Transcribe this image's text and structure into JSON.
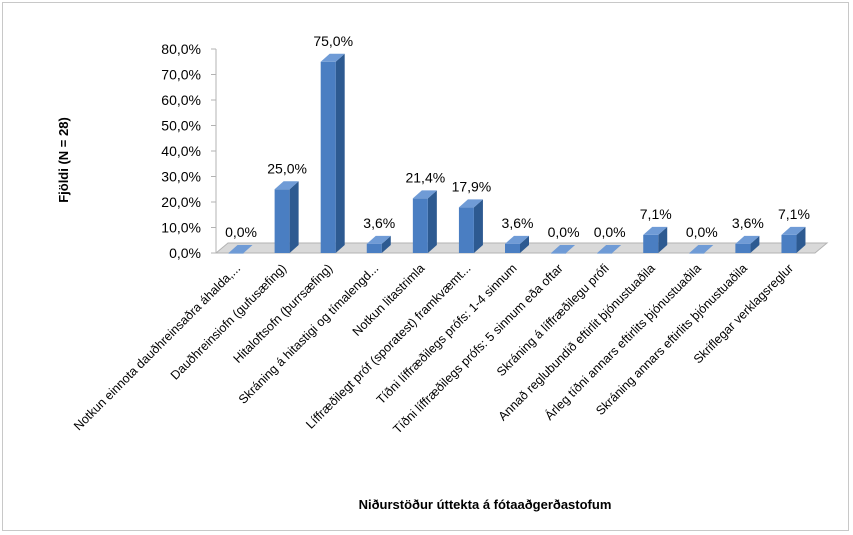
{
  "chart_data": {
    "type": "bar",
    "title": "",
    "xlabel": "Niðurstöður úttekta á fótaaðgerðastofum",
    "ylabel": "Fjöldi (N = 28)",
    "ylim": [
      0,
      80
    ],
    "yticks": [
      "0,0%",
      "10,0%",
      "20,0%",
      "30,0%",
      "40,0%",
      "50,0%",
      "60,0%",
      "70,0%",
      "80,0%"
    ],
    "ytick_values": [
      0,
      10,
      20,
      30,
      40,
      50,
      60,
      70,
      80
    ],
    "categories": [
      "Notkun einnota dauðhreinsaðra áhalda,...",
      "Dauðhreinsiofn (gufusæfing)",
      "Hitaloftsofn (þurrsæfing)",
      "Skráning á hitastigi og tímalengd...",
      "Notkun litastrimla",
      "Líffræðilegt próf (sporatest) framkvæmt...",
      "Tíðni líffræðilegs prófs: 1-4 sinnum",
      "Tíðni líffræðilegs prófs: 5 sinnum eða oftar",
      "Skráning á líffræðilegu prófi",
      "Annað reglubundið eftirlit þjónustuaðila",
      "Árleg tíðni annars eftirlits þjónustuaðila",
      "Skráning annars eftirlits þjónustuaðila",
      "Skriflegar verklagsreglur"
    ],
    "values": [
      0.0,
      25.0,
      75.0,
      3.6,
      21.4,
      17.9,
      3.6,
      0.0,
      0.0,
      7.1,
      0.0,
      3.6,
      7.1
    ],
    "data_labels": [
      "0,0%",
      "25,0%",
      "75,0%",
      "3,6%",
      "21,4%",
      "17,9%",
      "3,6%",
      "0,0%",
      "0,0%",
      "7,1%",
      "0,0%",
      "3,6%",
      "7,1%"
    ],
    "grid": false,
    "legend": "none",
    "colors": {
      "bar_front": "#4a7ec2",
      "bar_side": "#2d5a91",
      "bar_top": "#6f9bd6",
      "floor": "#d9d9d9"
    }
  }
}
